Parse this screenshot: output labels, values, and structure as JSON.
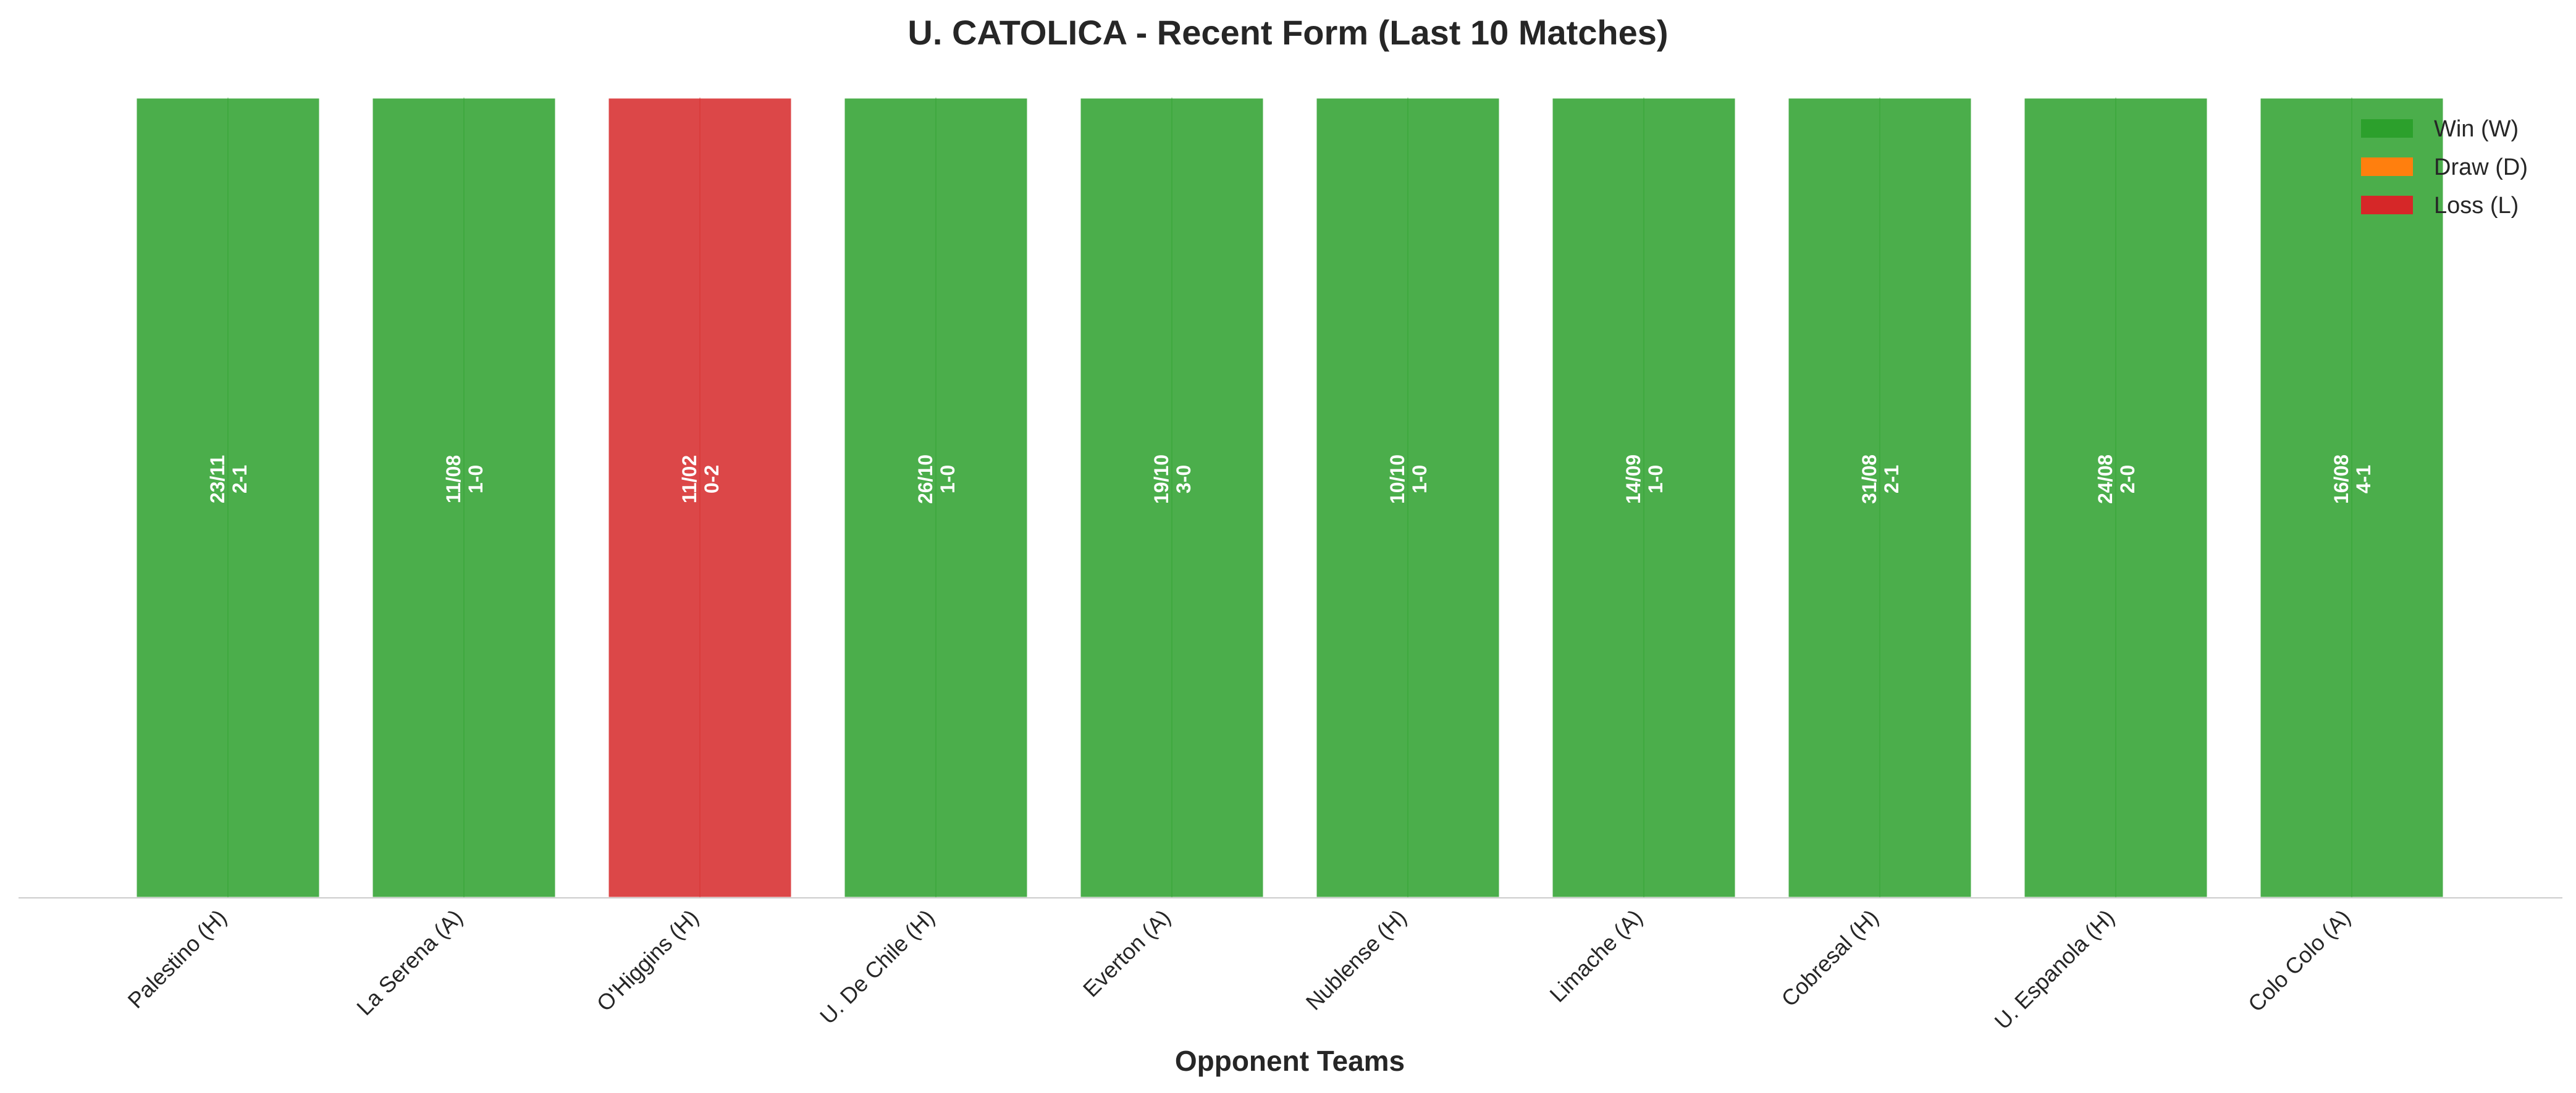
{
  "chart_data": {
    "type": "bar",
    "title": "U. CATOLICA - Recent Form (Last 10 Matches)",
    "xlabel": "Opponent Teams",
    "ylabel": "",
    "grid": false,
    "legend_position": "top-right",
    "categories": [
      "Palestino (H)",
      "La Serena (A)",
      "O'Higgins (H)",
      "U. De Chile (H)",
      "Everton (A)",
      "Nublense (H)",
      "Limache (A)",
      "Cobresal (H)",
      "U. Espanola (H)",
      "Colo Colo (A)"
    ],
    "values": [
      1,
      1,
      1,
      1,
      1,
      1,
      1,
      1,
      1,
      1
    ],
    "results": [
      "W",
      "W",
      "L",
      "W",
      "W",
      "W",
      "W",
      "W",
      "W",
      "W"
    ],
    "bar_labels": [
      {
        "date": "23/11",
        "score": "2-1"
      },
      {
        "date": "11/08",
        "score": "1-0"
      },
      {
        "date": "11/02",
        "score": "0-2"
      },
      {
        "date": "26/10",
        "score": "1-0"
      },
      {
        "date": "19/10",
        "score": "3-0"
      },
      {
        "date": "10/10",
        "score": "1-0"
      },
      {
        "date": "14/09",
        "score": "1-0"
      },
      {
        "date": "31/08",
        "score": "2-1"
      },
      {
        "date": "24/08",
        "score": "2-0"
      },
      {
        "date": "16/08",
        "score": "4-1"
      }
    ],
    "legend": [
      {
        "key": "W",
        "label": "Win (W)",
        "color": "#2ca02c"
      },
      {
        "key": "D",
        "label": "Draw (D)",
        "color": "#ff7f0e"
      },
      {
        "key": "L",
        "label": "Loss (L)",
        "color": "#d62728"
      }
    ],
    "colors": {
      "W": "#2ca02c",
      "D": "#ff7f0e",
      "L": "#d62728"
    },
    "bar_opacity": 0.85
  }
}
